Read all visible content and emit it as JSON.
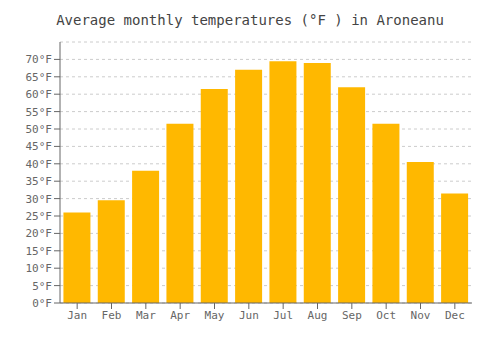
{
  "chart_data": {
    "type": "bar",
    "title": "Average monthly temperatures (°F ) in Aroneanu",
    "categories": [
      "Jan",
      "Feb",
      "Mar",
      "Apr",
      "May",
      "Jun",
      "Jul",
      "Aug",
      "Sep",
      "Oct",
      "Nov",
      "Dec"
    ],
    "values": [
      26,
      29.5,
      38,
      51.5,
      61.5,
      67,
      69.5,
      69,
      62,
      51.5,
      40.5,
      31.5
    ],
    "color": "#FFB800",
    "ylim": [
      0,
      75
    ],
    "yticks": [
      {
        "value": 0,
        "label": "0°F"
      },
      {
        "value": 5,
        "label": "5°F"
      },
      {
        "value": 10,
        "label": "10°F"
      },
      {
        "value": 15,
        "label": "15°F"
      },
      {
        "value": 20,
        "label": "20°F"
      },
      {
        "value": 25,
        "label": "25°F"
      },
      {
        "value": 30,
        "label": "30°F"
      },
      {
        "value": 35,
        "label": "35°F"
      },
      {
        "value": 40,
        "label": "40°F"
      },
      {
        "value": 45,
        "label": "45°F"
      },
      {
        "value": 50,
        "label": "50°F"
      },
      {
        "value": 55,
        "label": "55°F"
      },
      {
        "value": 60,
        "label": "60°F"
      },
      {
        "value": 65,
        "label": "65°F"
      },
      {
        "value": 70,
        "label": "70°F"
      }
    ],
    "grid": true
  }
}
